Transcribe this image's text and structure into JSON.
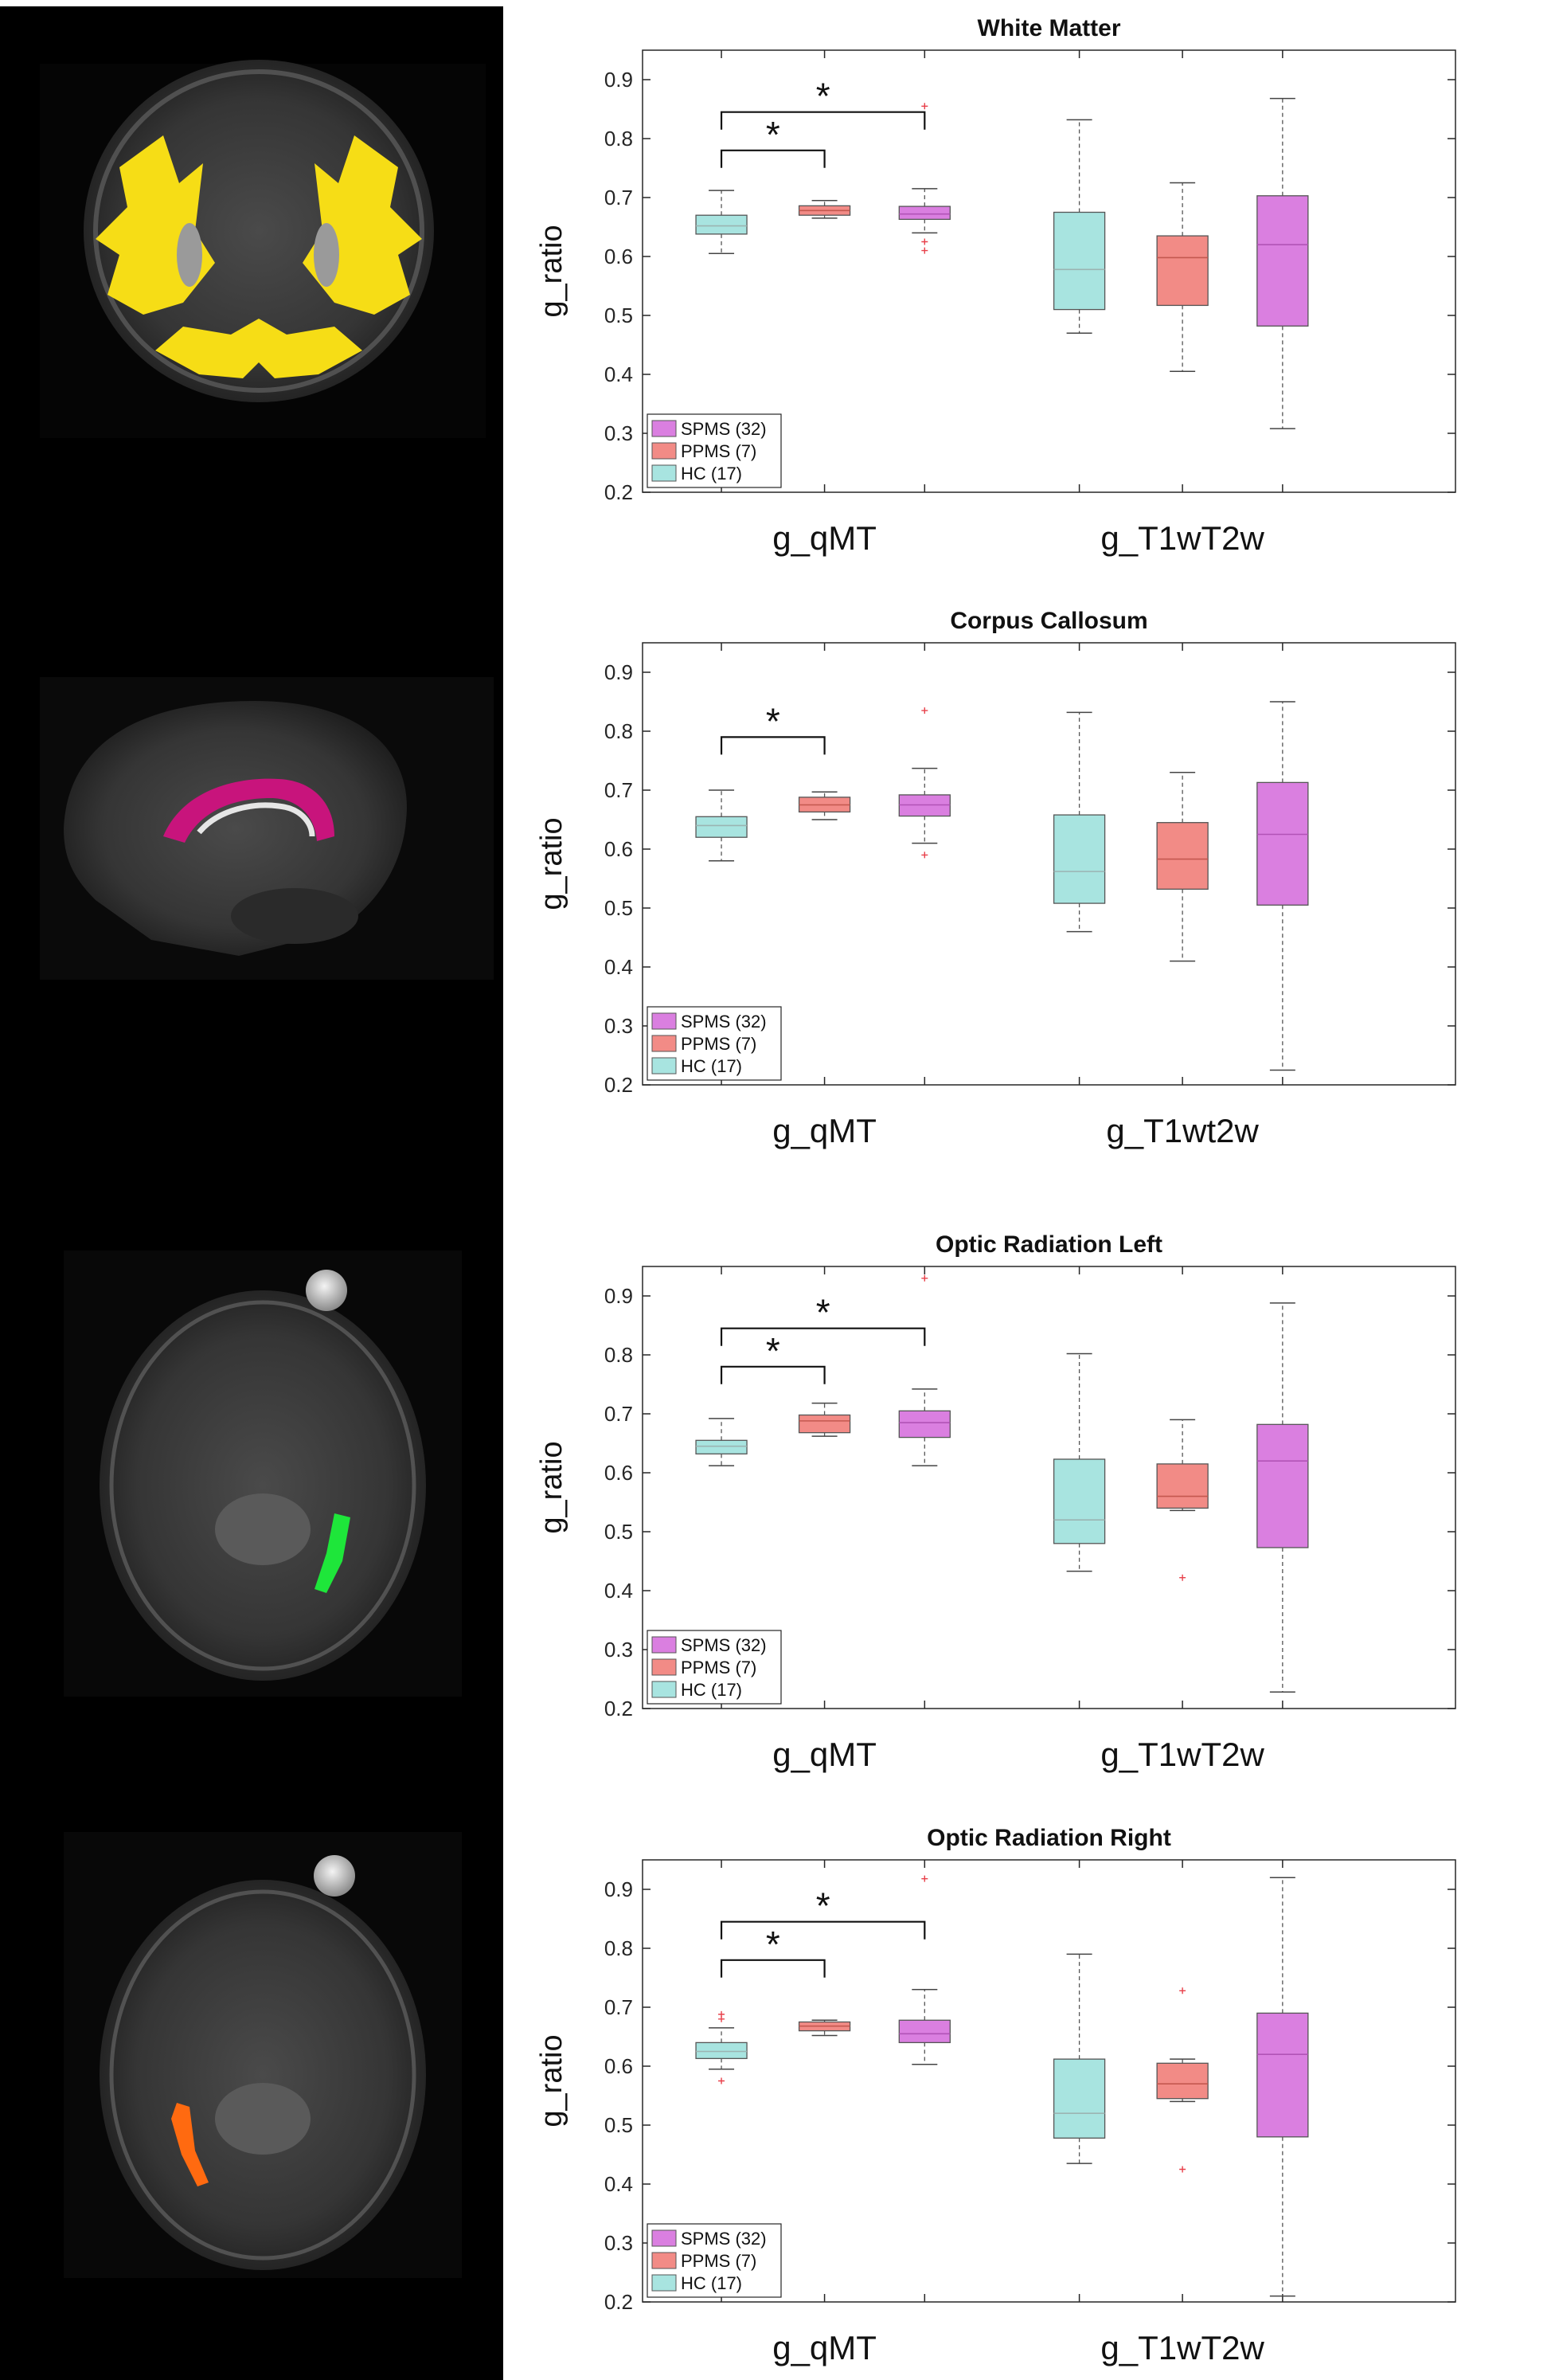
{
  "colors": {
    "HC": "#a8e4e0",
    "PPMS": "#f28b86",
    "SPMS": "#da7fe0",
    "median_HC": "#9bb4b2",
    "median_PPMS": "#c4584f",
    "median_SPMS": "#b153b6",
    "outlier": "#e8404a"
  },
  "brain_images": [
    {
      "label": "coronal-white-matter-mask",
      "overlay_color": "#f6dd16"
    },
    {
      "label": "sagittal-corpus-callosum-mask",
      "overlay_color": "#c8147c"
    },
    {
      "label": "axial-optic-radiation-left-mask",
      "overlay_color": "#1ee63a"
    },
    {
      "label": "axial-optic-radiation-right-mask",
      "overlay_color": "#ff6a10"
    }
  ],
  "chart_data": [
    {
      "type": "boxplot",
      "title": "White Matter",
      "ylabel": "g_ratio",
      "ylim": [
        0.2,
        0.95
      ],
      "yticks": [
        "0.2",
        "0.3",
        "0.4",
        "0.5",
        "0.6",
        "0.7",
        "0.8",
        "0.9"
      ],
      "categories": [
        "g_qMT",
        "g_T1wT2w"
      ],
      "legend": [
        "SPMS (32)",
        "PPMS (7)",
        "HC (17)"
      ],
      "boxes": [
        {
          "group": "HC",
          "category": "g_qMT",
          "whisker_low": 0.605,
          "q1": 0.638,
          "median": 0.652,
          "q3": 0.67,
          "whisker_high": 0.712,
          "outliers": []
        },
        {
          "group": "PPMS",
          "category": "g_qMT",
          "whisker_low": 0.665,
          "q1": 0.67,
          "median": 0.678,
          "q3": 0.686,
          "whisker_high": 0.695,
          "outliers": []
        },
        {
          "group": "SPMS",
          "category": "g_qMT",
          "whisker_low": 0.64,
          "q1": 0.663,
          "median": 0.672,
          "q3": 0.685,
          "whisker_high": 0.715,
          "outliers": [
            0.855,
            0.625,
            0.61
          ]
        },
        {
          "group": "HC",
          "category": "g_T1wT2w",
          "whisker_low": 0.47,
          "q1": 0.51,
          "median": 0.578,
          "q3": 0.675,
          "whisker_high": 0.832,
          "outliers": []
        },
        {
          "group": "PPMS",
          "category": "g_T1wT2w",
          "whisker_low": 0.405,
          "q1": 0.517,
          "median": 0.598,
          "q3": 0.635,
          "whisker_high": 0.725,
          "outliers": []
        },
        {
          "group": "SPMS",
          "category": "g_T1wT2w",
          "whisker_low": 0.308,
          "q1": 0.482,
          "median": 0.62,
          "q3": 0.703,
          "whisker_high": 0.868,
          "outliers": []
        }
      ],
      "significance": [
        {
          "from": "HC",
          "to": "PPMS",
          "category": "g_qMT",
          "label": "*",
          "level": 0.78
        },
        {
          "from": "HC",
          "to": "SPMS",
          "category": "g_qMT",
          "label": "*",
          "level": 0.845
        }
      ]
    },
    {
      "type": "boxplot",
      "title": "Corpus Callosum",
      "ylabel": "g_ratio",
      "ylim": [
        0.2,
        0.95
      ],
      "yticks": [
        "0.2",
        "0.3",
        "0.4",
        "0.5",
        "0.6",
        "0.7",
        "0.8",
        "0.9"
      ],
      "categories": [
        "g_qMT",
        "g_T1wt2w"
      ],
      "legend": [
        "SPMS (32)",
        "PPMS (7)",
        "HC (17)"
      ],
      "boxes": [
        {
          "group": "HC",
          "category": "g_qMT",
          "whisker_low": 0.58,
          "q1": 0.62,
          "median": 0.64,
          "q3": 0.655,
          "whisker_high": 0.7,
          "outliers": []
        },
        {
          "group": "PPMS",
          "category": "g_qMT",
          "whisker_low": 0.65,
          "q1": 0.663,
          "median": 0.675,
          "q3": 0.688,
          "whisker_high": 0.697,
          "outliers": []
        },
        {
          "group": "SPMS",
          "category": "g_qMT",
          "whisker_low": 0.61,
          "q1": 0.656,
          "median": 0.675,
          "q3": 0.692,
          "whisker_high": 0.737,
          "outliers": [
            0.835,
            0.59
          ]
        },
        {
          "group": "HC",
          "category": "g_T1wt2w",
          "whisker_low": 0.46,
          "q1": 0.508,
          "median": 0.562,
          "q3": 0.658,
          "whisker_high": 0.832,
          "outliers": []
        },
        {
          "group": "PPMS",
          "category": "g_T1wt2w",
          "whisker_low": 0.41,
          "q1": 0.532,
          "median": 0.583,
          "q3": 0.645,
          "whisker_high": 0.73,
          "outliers": []
        },
        {
          "group": "SPMS",
          "category": "g_T1wt2w",
          "whisker_low": 0.225,
          "q1": 0.505,
          "median": 0.625,
          "q3": 0.713,
          "whisker_high": 0.85,
          "outliers": []
        }
      ],
      "significance": [
        {
          "from": "HC",
          "to": "PPMS",
          "category": "g_qMT",
          "label": "*",
          "level": 0.79
        }
      ]
    },
    {
      "type": "boxplot",
      "title": "Optic Radiation Left",
      "ylabel": "g_ratio",
      "ylim": [
        0.2,
        0.95
      ],
      "yticks": [
        "0.2",
        "0.3",
        "0.4",
        "0.5",
        "0.6",
        "0.7",
        "0.8",
        "0.9"
      ],
      "categories": [
        "g_qMT",
        "g_T1wT2w"
      ],
      "legend": [
        "SPMS (32)",
        "PPMS (7)",
        "HC (17)"
      ],
      "boxes": [
        {
          "group": "HC",
          "category": "g_qMT",
          "whisker_low": 0.612,
          "q1": 0.632,
          "median": 0.645,
          "q3": 0.655,
          "whisker_high": 0.692,
          "outliers": []
        },
        {
          "group": "PPMS",
          "category": "g_qMT",
          "whisker_low": 0.662,
          "q1": 0.668,
          "median": 0.688,
          "q3": 0.698,
          "whisker_high": 0.718,
          "outliers": []
        },
        {
          "group": "SPMS",
          "category": "g_qMT",
          "whisker_low": 0.612,
          "q1": 0.66,
          "median": 0.685,
          "q3": 0.705,
          "whisker_high": 0.742,
          "outliers": [
            0.93
          ]
        },
        {
          "group": "HC",
          "category": "g_T1wT2w",
          "whisker_low": 0.433,
          "q1": 0.48,
          "median": 0.52,
          "q3": 0.623,
          "whisker_high": 0.802,
          "outliers": []
        },
        {
          "group": "PPMS",
          "category": "g_T1wT2w",
          "whisker_low": 0.536,
          "q1": 0.54,
          "median": 0.56,
          "q3": 0.615,
          "whisker_high": 0.69,
          "outliers": [
            0.422
          ]
        },
        {
          "group": "SPMS",
          "category": "g_T1wT2w",
          "whisker_low": 0.228,
          "q1": 0.473,
          "median": 0.62,
          "q3": 0.682,
          "whisker_high": 0.888,
          "outliers": []
        }
      ],
      "significance": [
        {
          "from": "HC",
          "to": "PPMS",
          "category": "g_qMT",
          "label": "*",
          "level": 0.78
        },
        {
          "from": "HC",
          "to": "SPMS",
          "category": "g_qMT",
          "label": "*",
          "level": 0.845
        }
      ]
    },
    {
      "type": "boxplot",
      "title": "Optic Radiation Right",
      "ylabel": "g_ratio",
      "ylim": [
        0.2,
        0.95
      ],
      "yticks": [
        "0.2",
        "0.3",
        "0.4",
        "0.5",
        "0.6",
        "0.7",
        "0.8",
        "0.9"
      ],
      "categories": [
        "g_qMT",
        "g_T1wT2w"
      ],
      "legend": [
        "SPMS (32)",
        "PPMS (7)",
        "HC (17)"
      ],
      "boxes": [
        {
          "group": "HC",
          "category": "g_qMT",
          "whisker_low": 0.595,
          "q1": 0.613,
          "median": 0.625,
          "q3": 0.64,
          "whisker_high": 0.665,
          "outliers": [
            0.688,
            0.68,
            0.575
          ]
        },
        {
          "group": "PPMS",
          "category": "g_qMT",
          "whisker_low": 0.652,
          "q1": 0.66,
          "median": 0.668,
          "q3": 0.675,
          "whisker_high": 0.678,
          "outliers": []
        },
        {
          "group": "SPMS",
          "category": "g_qMT",
          "whisker_low": 0.603,
          "q1": 0.64,
          "median": 0.655,
          "q3": 0.678,
          "whisker_high": 0.73,
          "outliers": [
            0.918
          ]
        },
        {
          "group": "HC",
          "category": "g_T1wT2w",
          "whisker_low": 0.435,
          "q1": 0.478,
          "median": 0.52,
          "q3": 0.612,
          "whisker_high": 0.79,
          "outliers": []
        },
        {
          "group": "PPMS",
          "category": "g_T1wT2w",
          "whisker_low": 0.54,
          "q1": 0.545,
          "median": 0.57,
          "q3": 0.605,
          "whisker_high": 0.612,
          "outliers": [
            0.728,
            0.425
          ]
        },
        {
          "group": "SPMS",
          "category": "g_T1wT2w",
          "whisker_low": 0.21,
          "q1": 0.48,
          "median": 0.62,
          "q3": 0.69,
          "whisker_high": 0.92,
          "outliers": []
        }
      ],
      "significance": [
        {
          "from": "HC",
          "to": "PPMS",
          "category": "g_qMT",
          "label": "*",
          "level": 0.78
        },
        {
          "from": "HC",
          "to": "SPMS",
          "category": "g_qMT",
          "label": "*",
          "level": 0.845
        }
      ]
    }
  ]
}
